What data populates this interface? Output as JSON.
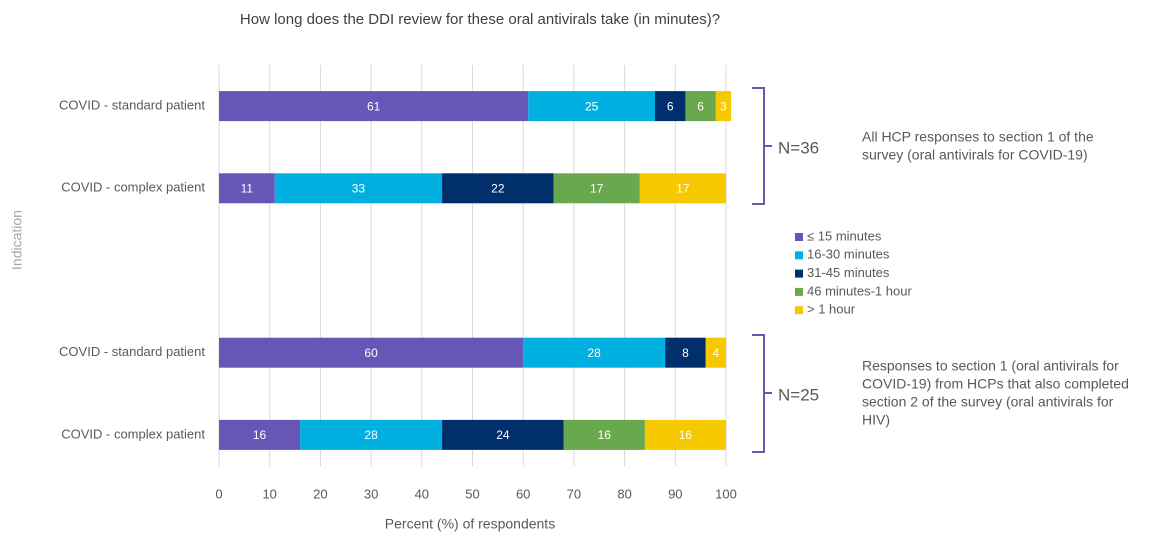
{
  "chart_data": {
    "type": "stacked_barh",
    "title": "How long does the DDI review for these oral antivirals take (in minutes)?",
    "x_label": "Percent (%) of respondents",
    "y_label": "Indication",
    "categories": [
      "COVID - standard patient",
      "COVID - complex patient",
      null,
      "COVID - standard patient",
      "COVID - complex patient"
    ],
    "series": [
      {
        "name": "≤ 15 minutes",
        "color": "#6656b6",
        "values": [
          61,
          11,
          null,
          60,
          16
        ]
      },
      {
        "name": "16-30 minutes",
        "color": "#00b0e0",
        "values": [
          25,
          33,
          null,
          28,
          28
        ]
      },
      {
        "name": "31-45 minutes",
        "color": "#002f6c",
        "values": [
          6,
          22,
          null,
          8,
          24
        ]
      },
      {
        "name": "46 minutes-1 hour",
        "color": "#6aa84f",
        "values": [
          6,
          17,
          null,
          0,
          16
        ]
      },
      {
        "name": "> 1 hour",
        "color": "#f5c800",
        "values": [
          3,
          17,
          null,
          4,
          16
        ]
      }
    ],
    "xlim": [
      0,
      100
    ],
    "xticks": [
      0,
      10,
      20,
      30,
      40,
      50,
      60,
      70,
      80,
      90,
      100
    ],
    "grid": true,
    "legend": "right",
    "annotations": [
      {
        "label": "N=36",
        "text": [
          "All HCP responses to section 1 of the",
          "survey  (oral antivirals for COVID-19)"
        ]
      },
      {
        "label": "N=25",
        "text": [
          "Responses to section 1 (oral antivirals for",
          "COVID-19) from HCPs that also completed",
          "section 2 of the survey (oral antivirals for",
          "HIV)"
        ]
      }
    ]
  }
}
